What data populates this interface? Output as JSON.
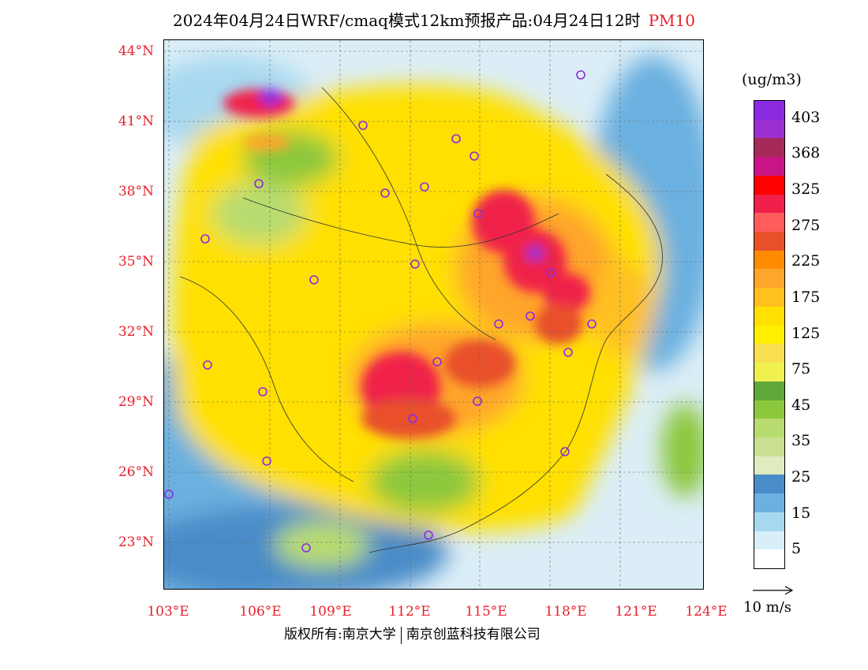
{
  "title": {
    "main": "2024年04月24日WRF/cmaq模式12km预报产品:04月24日12时",
    "pollutant": "PM10"
  },
  "map": {
    "lat_labels": [
      "44°N",
      "41°N",
      "38°N",
      "35°N",
      "32°N",
      "29°N",
      "26°N",
      "23°N"
    ],
    "lon_labels": [
      "103°E",
      "106°E",
      "109°E",
      "112°E",
      "115°E",
      "118°E",
      "121°E",
      "124°E"
    ]
  },
  "colorbar": {
    "unit": "(ug/m3)",
    "labels": [
      "403",
      "368",
      "325",
      "275",
      "225",
      "175",
      "125",
      "75",
      "45",
      "35",
      "25",
      "15",
      "5"
    ],
    "colors": [
      "#8a2be2",
      "#9b30d0",
      "#a52a5a",
      "#c71585",
      "#ff0000",
      "#f0204a",
      "#ff5c5c",
      "#e8502a",
      "#ff8c00",
      "#ffa52a",
      "#ffc020",
      "#ffe000",
      "#fff000",
      "#f8e050",
      "#f0f050",
      "#5fa83a",
      "#8cc83c",
      "#b8dc70",
      "#c8e090",
      "#e0ecc0",
      "#4a8cc8",
      "#6ab0e0",
      "#a8d8f0",
      "#d8eef8",
      "#ffffff"
    ]
  },
  "vector_ref": {
    "label": "10 m/s"
  },
  "copyright": {
    "prefix": "版权所有:南京大学",
    "company": "南京创蓝科技有限公司"
  }
}
